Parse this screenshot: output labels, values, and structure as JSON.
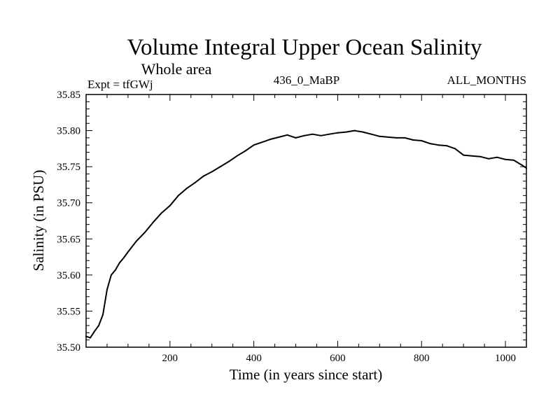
{
  "chart_data": {
    "type": "line",
    "title": "Volume Integral Upper Ocean Salinity",
    "subtitle": "Whole area",
    "left_label": "Expt = tfGWj",
    "center_label": "436_0_MaBP",
    "right_label": "ALL_MONTHS",
    "xlabel": "Time (in years since start)",
    "ylabel": "Salinity (in PSU)",
    "xlim": [
      0,
      1050
    ],
    "ylim": [
      35.5,
      35.85
    ],
    "xticks": [
      200,
      400,
      600,
      800,
      1000
    ],
    "xtick_labels": [
      "200",
      "400",
      "600",
      "800",
      "1000"
    ],
    "yticks": [
      35.5,
      35.55,
      35.6,
      35.65,
      35.7,
      35.75,
      35.8,
      35.85
    ],
    "ytick_labels": [
      "35.50",
      "35.55",
      "35.60",
      "35.65",
      "35.70",
      "35.75",
      "35.80",
      "35.85"
    ],
    "grid": false,
    "series": [
      {
        "name": "Salinity",
        "color": "#000000",
        "x": [
          0,
          10,
          20,
          30,
          40,
          50,
          60,
          70,
          80,
          90,
          100,
          120,
          140,
          160,
          180,
          200,
          220,
          240,
          260,
          280,
          300,
          320,
          340,
          360,
          380,
          400,
          420,
          440,
          460,
          480,
          500,
          520,
          540,
          560,
          580,
          600,
          620,
          640,
          660,
          680,
          700,
          720,
          740,
          760,
          780,
          800,
          820,
          840,
          860,
          880,
          900,
          920,
          940,
          960,
          980,
          1000,
          1020,
          1040,
          1050
        ],
        "y": [
          35.515,
          35.513,
          35.522,
          35.53,
          35.545,
          35.58,
          35.6,
          35.607,
          35.617,
          35.624,
          35.632,
          35.647,
          35.659,
          35.673,
          35.686,
          35.696,
          35.71,
          35.72,
          35.728,
          35.737,
          35.743,
          35.75,
          35.757,
          35.765,
          35.772,
          35.78,
          35.784,
          35.788,
          35.791,
          35.794,
          35.79,
          35.793,
          35.795,
          35.793,
          35.795,
          35.797,
          35.798,
          35.8,
          35.798,
          35.795,
          35.792,
          35.791,
          35.79,
          35.79,
          35.787,
          35.786,
          35.782,
          35.78,
          35.779,
          35.775,
          35.766,
          35.765,
          35.764,
          35.761,
          35.763,
          35.76,
          35.759,
          35.752,
          35.748
        ]
      }
    ]
  }
}
